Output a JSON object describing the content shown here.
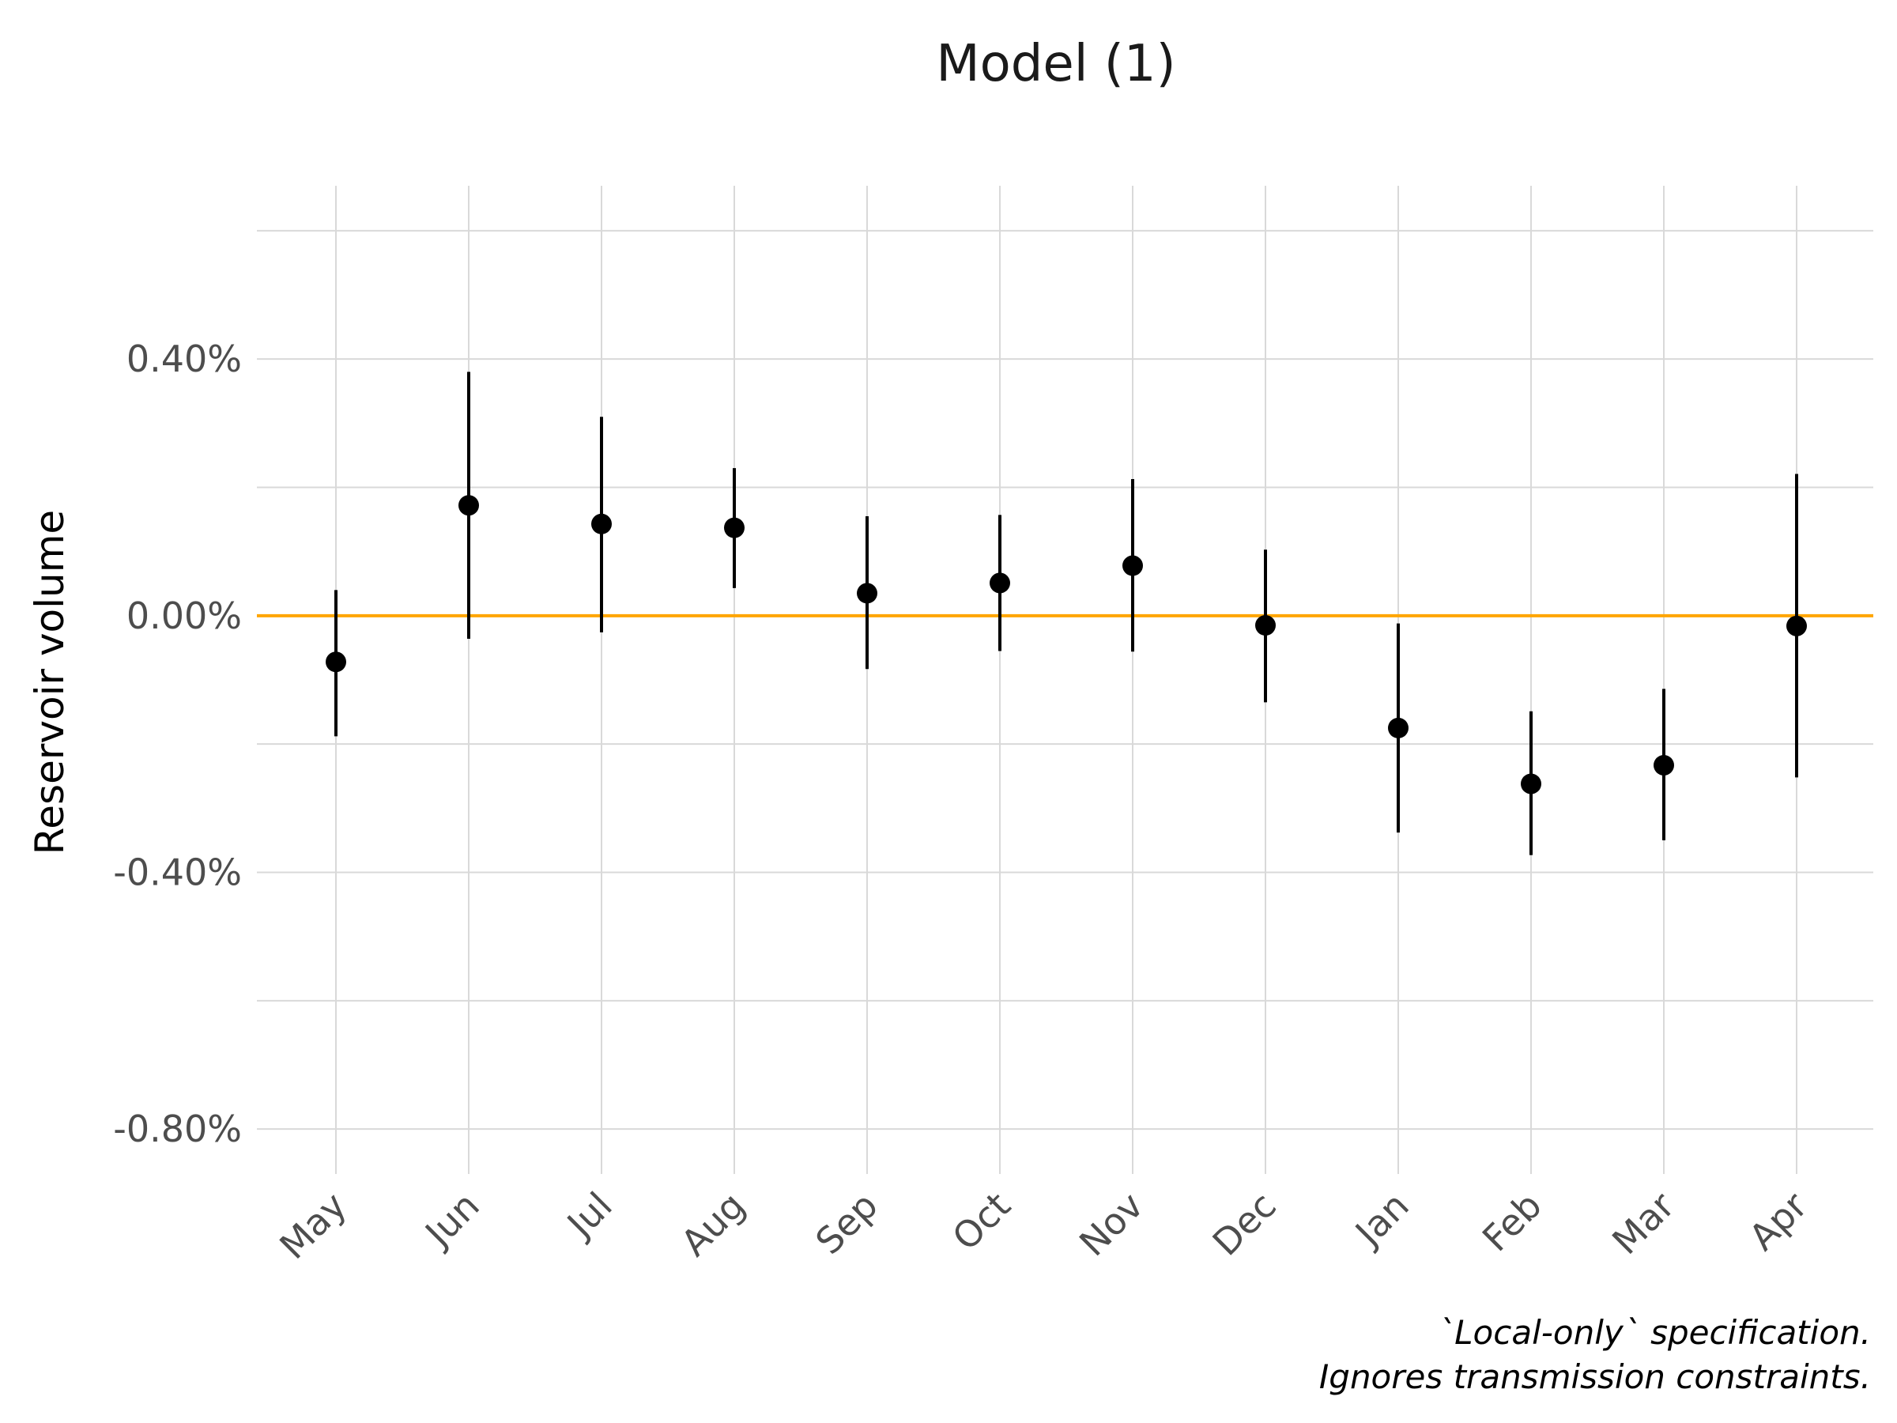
{
  "chart_data": {
    "type": "scatter",
    "subtype": "point-range",
    "title": "Model (1)",
    "xlabel": "",
    "ylabel": "Reservoir volume",
    "categories": [
      "May",
      "Jun",
      "Jul",
      "Aug",
      "Sep",
      "Oct",
      "Nov",
      "Dec",
      "Jan",
      "Feb",
      "Mar",
      "Apr"
    ],
    "series": [
      {
        "estimate": [
          -0.072,
          0.172,
          0.143,
          0.137,
          0.035,
          0.051,
          0.078,
          -0.015,
          -0.175,
          -0.262,
          -0.233,
          -0.016
        ],
        "lower": [
          -0.188,
          -0.036,
          -0.026,
          0.043,
          -0.083,
          -0.055,
          -0.056,
          -0.135,
          -0.338,
          -0.373,
          -0.35,
          -0.252
        ],
        "upper": [
          0.04,
          0.38,
          0.31,
          0.23,
          0.155,
          0.157,
          0.213,
          0.103,
          -0.012,
          -0.149,
          -0.114,
          0.221
        ]
      }
    ],
    "ylim": [
      -0.87,
      0.67
    ],
    "yticks": [
      -0.8,
      -0.4,
      0.0,
      0.4
    ],
    "ytick_labels": [
      "-0.80%",
      "-0.40%",
      "0.00%",
      "0.40%"
    ],
    "reference_line": {
      "y": 0,
      "color": "#FFA500"
    },
    "caption": [
      "`Local-only` specification.",
      "Ignores transmission constraints."
    ],
    "grid": true,
    "legend": "none",
    "colors": {
      "point": "#000000",
      "grid": "#d9d9d9",
      "reference": "#FFA500"
    }
  }
}
